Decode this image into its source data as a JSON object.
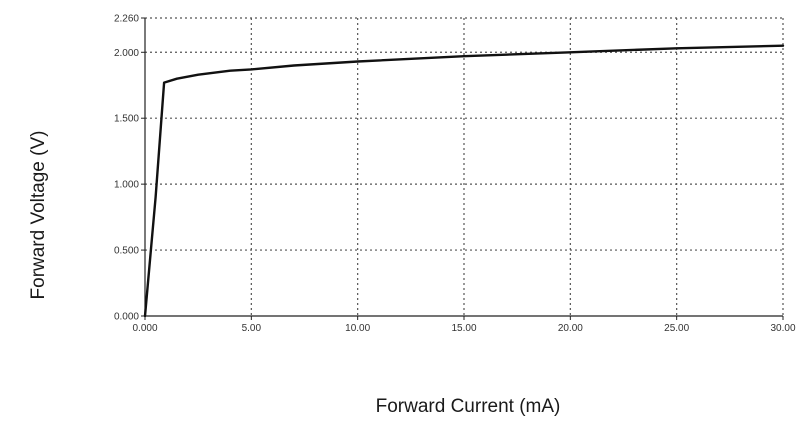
{
  "chart_data": {
    "type": "line",
    "title": "",
    "xlabel": "Forward Current (mA)",
    "ylabel": "Forward Voltage (V)",
    "xlim": [
      0,
      30
    ],
    "ylim": [
      0,
      2.26
    ],
    "x_ticks": [
      {
        "value": 0,
        "label": "0.000"
      },
      {
        "value": 5,
        "label": "5.00"
      },
      {
        "value": 10,
        "label": "10.00"
      },
      {
        "value": 15,
        "label": "15.00"
      },
      {
        "value": 20,
        "label": "20.00"
      },
      {
        "value": 25,
        "label": "25.00"
      },
      {
        "value": 30,
        "label": "30.00"
      }
    ],
    "y_ticks": [
      {
        "value": 0,
        "label": "0.000"
      },
      {
        "value": 0.5,
        "label": "0.500"
      },
      {
        "value": 1.0,
        "label": "1.000"
      },
      {
        "value": 1.5,
        "label": "1.500"
      },
      {
        "value": 2.0,
        "label": "2.000"
      },
      {
        "value": 2.26,
        "label": "2.260"
      }
    ],
    "grid": true,
    "series": [
      {
        "x": [
          0,
          0.5,
          0.9,
          1.5,
          2.5,
          4,
          5,
          7,
          10,
          15,
          20,
          25,
          30
        ],
        "y": [
          0,
          0.9,
          1.77,
          1.8,
          1.83,
          1.86,
          1.87,
          1.9,
          1.93,
          1.97,
          2.0,
          2.03,
          2.05
        ]
      }
    ]
  }
}
